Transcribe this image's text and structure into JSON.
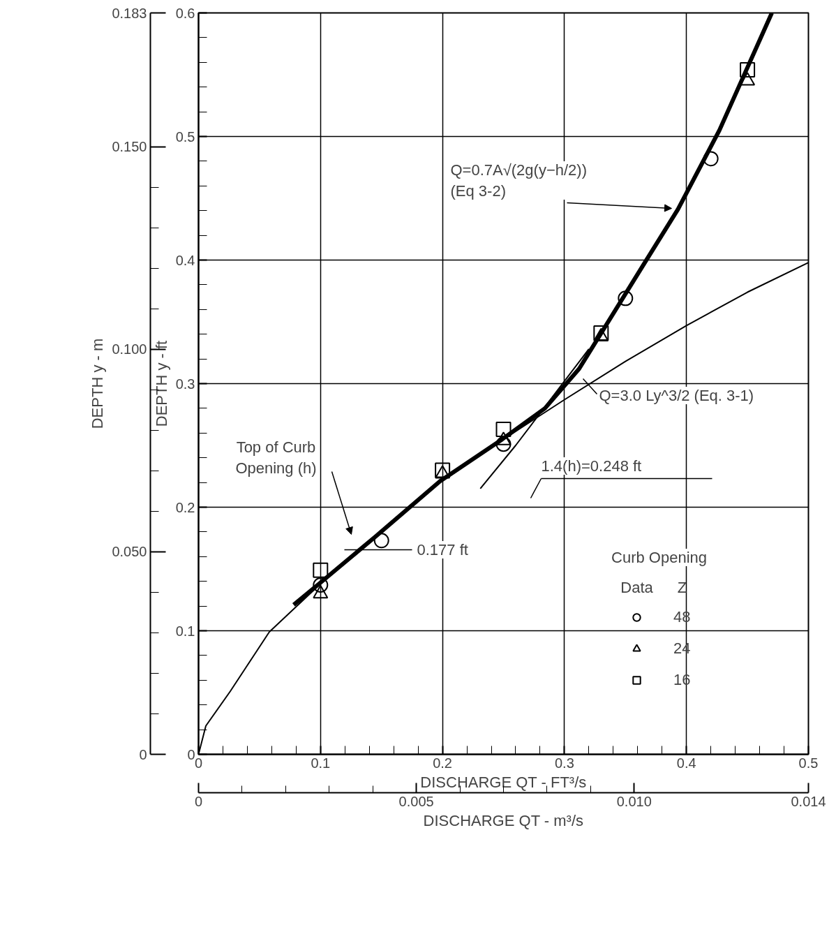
{
  "chart_data": {
    "type": "line",
    "xlabel": "DISCHARGE QT - FT³/s",
    "ylabel": "DEPTH y - ft",
    "y2label": "DEPTH y - m",
    "x2label": "DISCHARGE QT - m³/s",
    "legend_title": "Curb Opening",
    "xlim": [
      0,
      0.5
    ],
    "xticks": [
      0,
      0.1,
      0.2,
      0.3,
      0.4,
      0.5
    ],
    "ylim": [
      0,
      0.6
    ],
    "yticks": [
      0,
      0.1,
      0.2,
      0.3,
      0.4,
      0.5,
      0.6
    ],
    "x2lim": [
      0,
      0.014
    ],
    "x2ticks": [
      0,
      {
        "value": 0.005,
        "label": "0.005"
      },
      {
        "value": 0.01,
        "label": "0.010"
      },
      0.014
    ],
    "y2lim": [
      0,
      0.183
    ],
    "y2ticks": [
      0,
      {
        "value": 0.05,
        "label": "0.050"
      },
      {
        "value": 0.1,
        "label": "0.100"
      },
      {
        "value": 0.15,
        "label": "0.150"
      },
      0.183
    ],
    "grid": true,
    "legend": "bottom right",
    "line_style": "solid",
    "series": [
      {
        "color": "#000000",
        "x": [
          0,
          0.006,
          0.026,
          0.058,
          0.1,
          0.15,
          0.2,
          0.25,
          0.3,
          0.35,
          0.4,
          0.45,
          0.5
        ],
        "values": [
          0,
          0.023,
          0.051,
          0.099,
          0.138,
          0.18,
          0.223,
          0.255,
          0.287,
          0.318,
          0.347,
          0.374,
          0.398
        ]
      },
      {
        "color": "#000000",
        "x": [
          0.231,
          0.26,
          0.3,
          0.32
        ],
        "values": [
          0.215,
          0.25,
          0.302,
          0.328
        ]
      },
      {
        "color": "#000000",
        "x": [
          0.078,
          0.1,
          0.146,
          0.198,
          0.249,
          0.284,
          0.312,
          0.364,
          0.393,
          0.427,
          0.47
        ],
        "values": [
          0.121,
          0.139,
          0.177,
          0.221,
          0.255,
          0.28,
          0.312,
          0.395,
          0.441,
          0.505,
          0.6
        ]
      },
      {
        "type": "scatter",
        "name": "48",
        "marker": "circle",
        "color": "#000000",
        "x": [
          0.1,
          0.15,
          0.25,
          0.35,
          0.42
        ],
        "values": [
          0.137,
          0.173,
          0.251,
          0.369,
          0.482
        ]
      },
      {
        "type": "scatter",
        "name": "24",
        "marker": "triangle",
        "color": "#000000",
        "x": [
          0.1,
          0.2,
          0.25,
          0.33,
          0.45
        ],
        "values": [
          0.13,
          0.227,
          0.254,
          0.338,
          0.545
        ]
      },
      {
        "type": "scatter",
        "name": "16",
        "marker": "square",
        "color": "#000000",
        "x": [
          0.1,
          0.2,
          0.25,
          0.33,
          0.45
        ],
        "values": [
          0.149,
          0.23,
          0.263,
          0.341,
          0.554
        ]
      }
    ],
    "annotations": [
      "Top of Curb\nOpening (h)",
      "0.177 ft",
      "1.4(h)=0.248 ft",
      "Q=0.7A√(2g(y−h/2))\n(Eq 3-2)",
      "Q=3.0 Ly^3/2 (Eq. 3-1)",
      "Data",
      "Z"
    ]
  }
}
